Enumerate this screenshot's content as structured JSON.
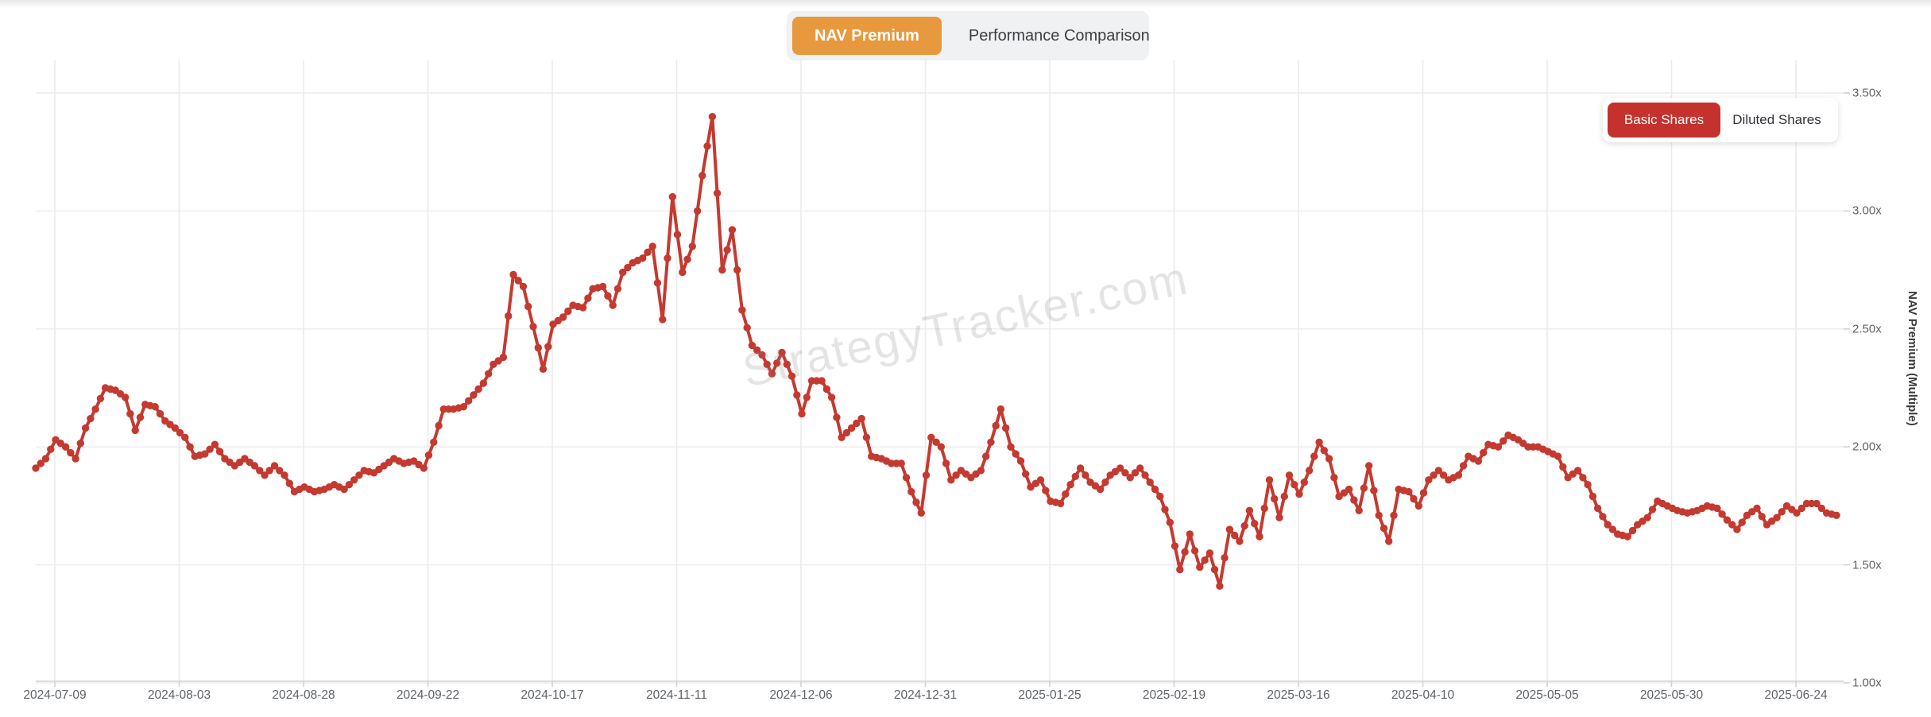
{
  "tabs": {
    "nav_premium": "NAV Premium",
    "performance_comparison": "Performance Comparison"
  },
  "legend": {
    "basic_shares": "Basic Shares",
    "diluted_shares": "Diluted Shares"
  },
  "watermark": "StrategyTracker.com",
  "colors": {
    "active_tab_orange": "#E8993D",
    "active_legend_red": "#C5322D",
    "line_red": "#C43A30",
    "grid": "#ebebeb",
    "axis_line": "#d2d2d2",
    "tick_text": "#5f6368"
  },
  "chart_data": {
    "type": "line",
    "title": "",
    "ylabel": "NAV Premium (Multiple)",
    "series_name": "Basic Shares",
    "y_ticks": [
      "3.50x",
      "3.00x",
      "2.50x",
      "2.00x",
      "1.50x",
      "1.00x"
    ],
    "y_range": [
      1.0,
      3.5
    ],
    "x_tick_labels": [
      "2024-07-09",
      "2024-08-03",
      "2024-08-28",
      "2024-09-22",
      "2024-10-17",
      "2024-11-11",
      "2024-12-06",
      "2024-12-31",
      "2025-01-25",
      "2025-02-19",
      "2025-03-16",
      "2025-04-10",
      "2025-05-05",
      "2025-05-30",
      "2025-06-24"
    ],
    "x_tick_interval_days": 25,
    "start_date_approx": "2024-07-05",
    "sample_interval_days": 2,
    "grid": true,
    "legend_position": "top-right",
    "values": [
      1.91,
      1.95,
      2.03,
      2.0,
      1.95,
      2.08,
      2.16,
      2.25,
      2.24,
      2.21,
      2.07,
      2.18,
      2.17,
      2.11,
      2.08,
      2.04,
      1.96,
      1.97,
      2.01,
      1.95,
      1.92,
      1.95,
      1.92,
      1.88,
      1.92,
      1.88,
      1.81,
      1.83,
      1.81,
      1.82,
      1.84,
      1.82,
      1.86,
      1.9,
      1.89,
      1.92,
      1.95,
      1.93,
      1.94,
      1.91,
      2.02,
      2.16,
      2.16,
      2.17,
      2.22,
      2.27,
      2.35,
      2.38,
      2.73,
      2.68,
      2.51,
      2.33,
      2.52,
      2.55,
      2.6,
      2.59,
      2.67,
      2.68,
      2.6,
      2.74,
      2.78,
      2.8,
      2.85,
      2.54,
      3.06,
      2.74,
      2.85,
      3.15,
      3.4,
      2.75,
      2.92,
      2.58,
      2.43,
      2.39,
      2.31,
      2.4,
      2.3,
      2.14,
      2.28,
      2.28,
      2.21,
      2.04,
      2.08,
      2.12,
      1.96,
      1.95,
      1.93,
      1.93,
      1.81,
      1.72,
      2.04,
      2.0,
      1.86,
      1.9,
      1.87,
      1.9,
      2.02,
      2.16,
      2.0,
      1.94,
      1.83,
      1.86,
      1.77,
      1.76,
      1.84,
      1.91,
      1.85,
      1.82,
      1.88,
      1.91,
      1.87,
      1.91,
      1.85,
      1.79,
      1.68,
      1.48,
      1.63,
      1.49,
      1.55,
      1.41,
      1.65,
      1.6,
      1.73,
      1.62,
      1.86,
      1.7,
      1.88,
      1.8,
      1.9,
      2.02,
      1.95,
      1.79,
      1.82,
      1.73,
      1.92,
      1.71,
      1.6,
      1.82,
      1.81,
      1.75,
      1.86,
      1.9,
      1.86,
      1.88,
      1.96,
      1.94,
      2.01,
      2.0,
      2.05,
      2.03,
      2.0,
      2.0,
      1.98,
      1.96,
      1.87,
      1.9,
      1.84,
      1.74,
      1.67,
      1.63,
      1.62,
      1.67,
      1.7,
      1.77,
      1.75,
      1.73,
      1.72,
      1.73,
      1.75,
      1.74,
      1.69,
      1.65,
      1.71,
      1.74,
      1.67,
      1.7,
      1.75,
      1.72,
      1.76,
      1.76,
      1.72,
      1.71
    ]
  }
}
